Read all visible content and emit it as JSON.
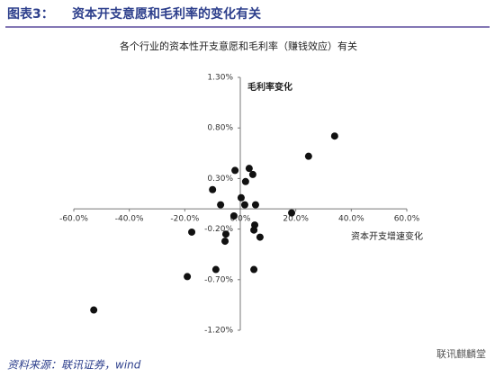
{
  "header": {
    "label": "图表3：",
    "title": "资本开支意愿和毛利率的变化有关"
  },
  "chart_data": {
    "type": "scatter",
    "title": "各个行业的资本性开支意愿和毛利率（赚钱效应）有关",
    "xlabel": "资本开支增速变化",
    "ylabel": "毛利率变化",
    "x": [
      -52.8,
      -19.1,
      -8.8,
      4.9,
      -17.5,
      -5.2,
      -5.5,
      -10.0,
      -7.1,
      -2.3,
      -1.9,
      0.3,
      1.6,
      1.9,
      3.2,
      4.5,
      5.5,
      5.2,
      4.9,
      7.1,
      18.5,
      24.6,
      34.0
    ],
    "y": [
      -1.0,
      -0.67,
      -0.6,
      -0.6,
      -0.23,
      -0.25,
      -0.32,
      0.19,
      0.04,
      -0.07,
      0.38,
      0.11,
      0.04,
      0.27,
      0.4,
      0.34,
      0.04,
      -0.16,
      -0.21,
      -0.28,
      -0.04,
      0.52,
      0.72
    ],
    "color": "#111111",
    "xlim": [
      -60,
      60
    ],
    "xticks": [
      {
        "value": -60,
        "label": "-60.0%"
      },
      {
        "value": -40,
        "label": "-40.0%"
      },
      {
        "value": -20,
        "label": "-20.0%"
      },
      {
        "value": 0,
        "label": "0.0%"
      },
      {
        "value": 20,
        "label": "20.0%"
      },
      {
        "value": 40,
        "label": "40.0%"
      },
      {
        "value": 60,
        "label": "60.0%"
      }
    ],
    "ylim": [
      -1.2,
      1.3
    ],
    "yticks": [
      {
        "value": -1.2,
        "label": "-1.20%"
      },
      {
        "value": -0.7,
        "label": "-0.70%"
      },
      {
        "value": -0.2,
        "label": "-0.20%"
      },
      {
        "value": 0.3,
        "label": "0.30%"
      },
      {
        "value": 0.8,
        "label": "0.80%"
      },
      {
        "value": 1.3,
        "label": "1.30%"
      }
    ],
    "grid": false
  },
  "footer": {
    "source": "资料来源：联讯证券，wind",
    "watermark": "联讯麒麟堂"
  }
}
